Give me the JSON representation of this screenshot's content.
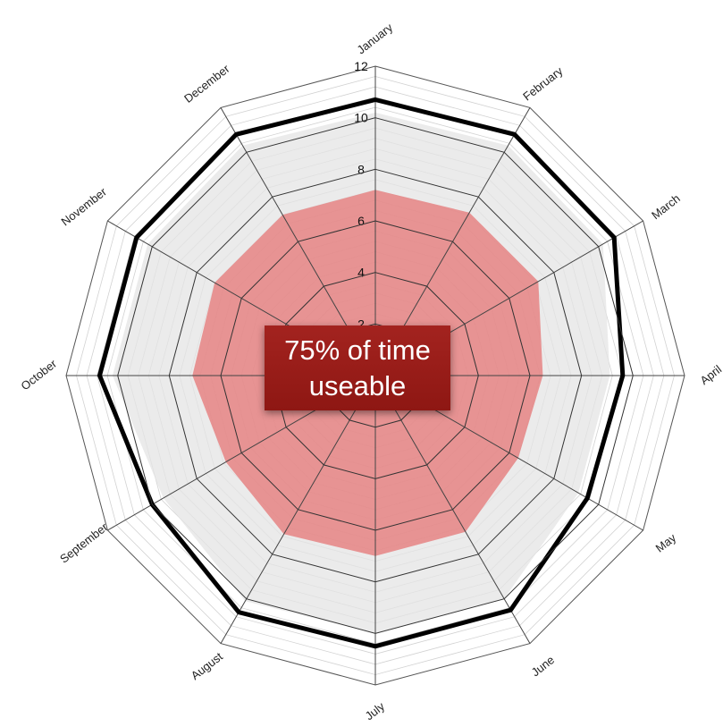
{
  "chart_data": {
    "type": "radar",
    "categories": [
      "January",
      "February",
      "March",
      "April",
      "May",
      "June",
      "July",
      "August",
      "September",
      "October",
      "November",
      "December"
    ],
    "rlim": [
      0,
      12
    ],
    "tick_labels": [
      "2",
      "4",
      "6",
      "8",
      "10",
      "12"
    ],
    "series": [
      {
        "values": [
          7.2,
          7.3,
          7.3,
          6.5,
          6.4,
          7.0,
          7.0,
          7.1,
          6.7,
          7.1,
          7.2,
          7.2
        ],
        "color": "#e57a7a"
      },
      {
        "values": [
          10.2,
          10.3,
          10.2,
          9.1,
          9.1,
          10.0,
          10.0,
          10.1,
          9.5,
          10.2,
          10.2,
          10.3
        ],
        "color": "#e4e4e4"
      },
      {
        "values": [
          10.7,
          10.8,
          10.7,
          9.6,
          9.5,
          10.5,
          10.5,
          10.6,
          10.0,
          10.7,
          10.7,
          10.8
        ],
        "color": "#000000"
      }
    ],
    "grid": true
  },
  "annotation": {
    "line1": "75% of time",
    "line2": "useable",
    "color": "#9a1d18"
  }
}
